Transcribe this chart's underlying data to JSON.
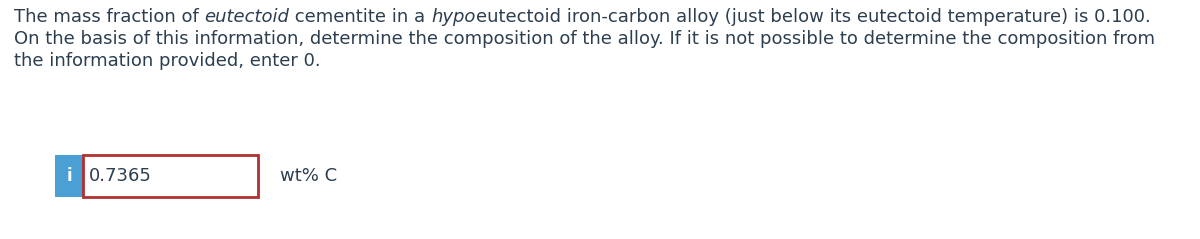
{
  "line1_parts": [
    [
      "The mass fraction of ",
      false
    ],
    [
      "eutectoid",
      true
    ],
    [
      " cementite in a ",
      false
    ],
    [
      "hypo",
      true
    ],
    [
      "eutectoid iron-carbon alloy (just below its eutectoid temperature) is 0.100.",
      false
    ]
  ],
  "line2": "On the basis of this information, determine the composition of the alloy. If it is not possible to determine the composition from",
  "line3": "the information provided, enter 0.",
  "answer_value": "0.7365",
  "answer_unit": "wt% C",
  "icon_color": "#4A9FD4",
  "icon_text": "i",
  "box_border_color": "#B03030",
  "box_bg_color": "#FFFFFF",
  "text_color": "#2C3E50",
  "bg_color": "#FFFFFF",
  "font_size": 13.0
}
